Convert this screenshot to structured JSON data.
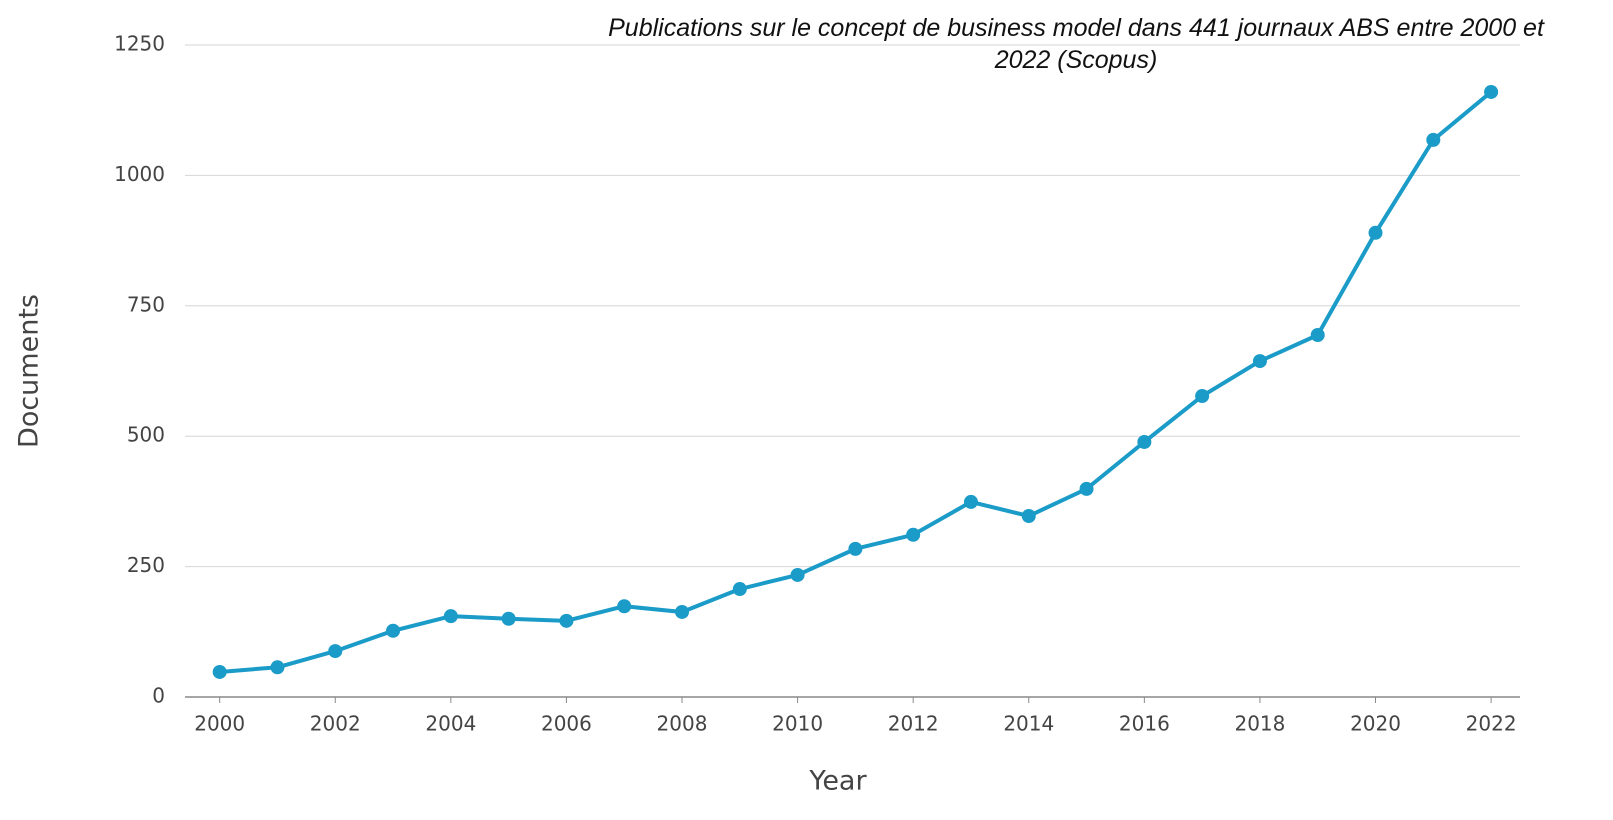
{
  "chart_data": {
    "type": "line",
    "title": "Publications sur le concept de business model dans 441 journaux ABS entre 2000 et 2022 (Scopus)",
    "x_label": "Year",
    "y_label": "Documents",
    "x": [
      2000,
      2001,
      2002,
      2003,
      2004,
      2005,
      2006,
      2007,
      2008,
      2009,
      2010,
      2011,
      2012,
      2013,
      2014,
      2015,
      2016,
      2017,
      2018,
      2019,
      2020,
      2021,
      2022
    ],
    "series": [
      {
        "name": "Documents",
        "color": "#1a9bc8",
        "values": [
          48,
          57,
          88,
          127,
          155,
          150,
          146,
          174,
          163,
          207,
          234,
          284,
          311,
          374,
          347,
          399,
          489,
          577,
          644,
          694,
          890,
          1068,
          1160
        ]
      }
    ],
    "xlim": [
      1999.4,
      2022.5
    ],
    "xticks": [
      2000,
      2002,
      2004,
      2006,
      2008,
      2010,
      2012,
      2014,
      2016,
      2018,
      2020,
      2022
    ],
    "ylim": [
      0,
      1250
    ],
    "yticks": [
      0,
      250,
      500,
      750,
      1000,
      1250
    ],
    "grid": true
  }
}
